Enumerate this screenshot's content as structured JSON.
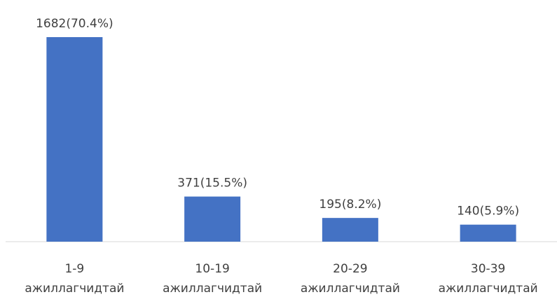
{
  "chart_data": {
    "type": "bar",
    "categories": [
      "1-9 ажиллагчидтай",
      "10-19 ажиллагчидтай",
      "20-29 ажиллагчидтай",
      "30-39 ажиллагчидтай"
    ],
    "values": [
      1682,
      371,
      195,
      140
    ],
    "value_labels": [
      "1682(70.4%)",
      "371(15.5%)",
      "195(8.2%)",
      "140(5.9%)"
    ],
    "color": "#4472c4"
  }
}
